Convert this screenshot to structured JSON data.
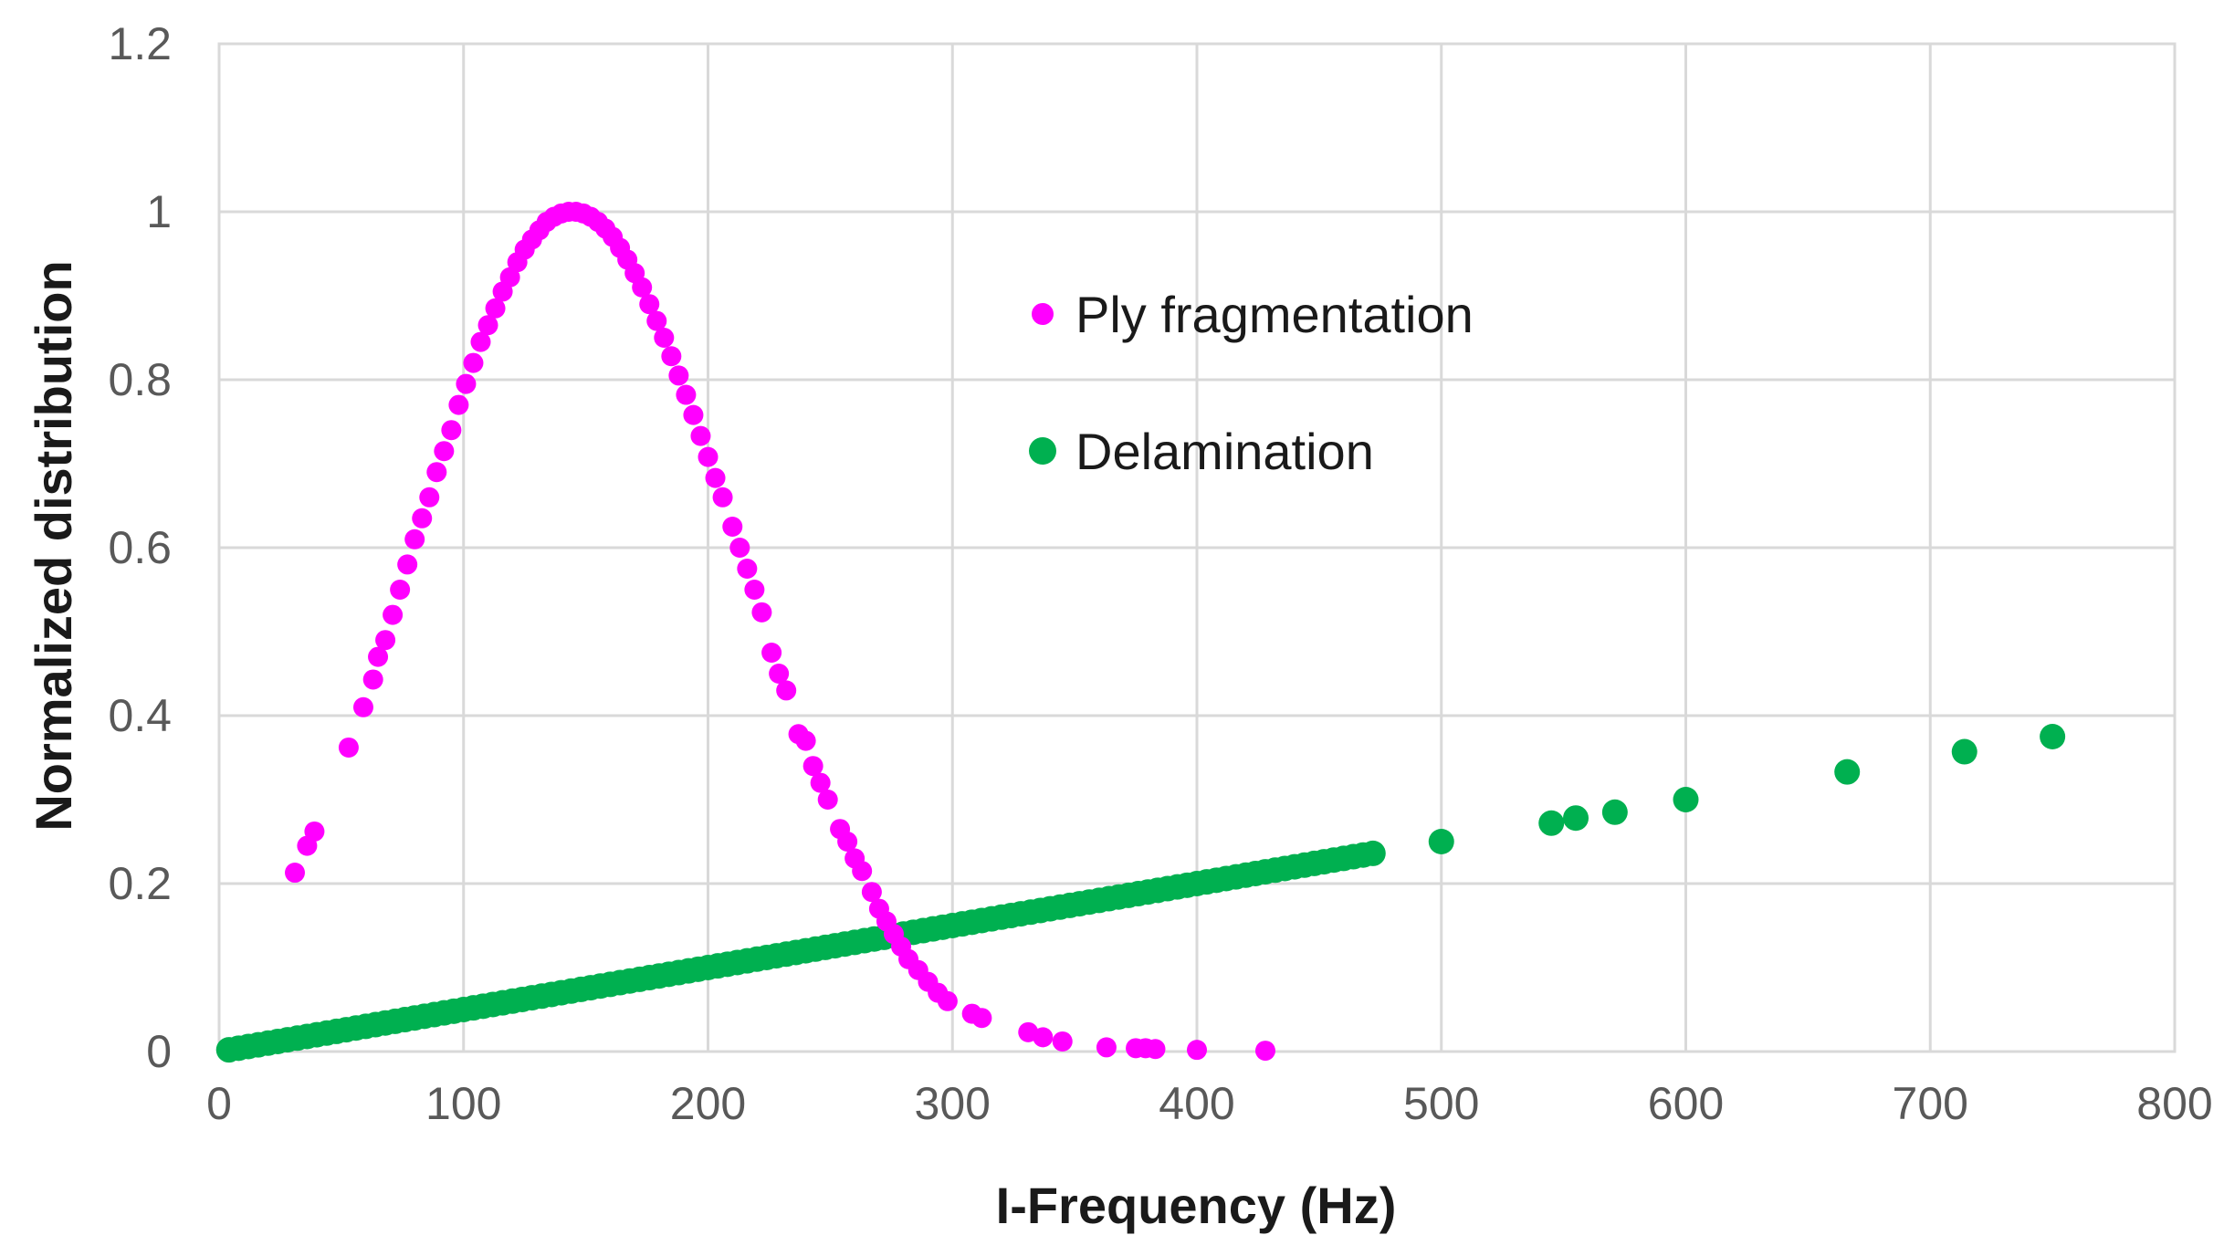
{
  "chart_data": {
    "type": "scatter",
    "title": "",
    "xlabel": "I-Frequency (Hz)",
    "ylabel": "Normalized distribution",
    "xlim": [
      0,
      800
    ],
    "ylim": [
      0,
      1.2
    ],
    "x_ticks": [
      0,
      100,
      200,
      300,
      400,
      500,
      600,
      700,
      800
    ],
    "y_ticks": [
      0,
      0.2,
      0.4,
      0.6,
      0.8,
      1,
      1.2
    ],
    "x_tick_labels": [
      "0",
      "100",
      "200",
      "300",
      "400",
      "500",
      "600",
      "700",
      "800"
    ],
    "y_tick_labels": [
      "0",
      "0.2",
      "0.4",
      "0.6",
      "0.8",
      "1",
      "1.2"
    ],
    "grid": true,
    "legend_position": "upper-center",
    "series": [
      {
        "name": "Ply fragmentation",
        "color": "#ff00ff",
        "marker_size": "small",
        "points": [
          [
            31,
            0.213
          ],
          [
            36,
            0.245
          ],
          [
            39,
            0.262
          ],
          [
            53,
            0.362
          ],
          [
            59,
            0.41
          ],
          [
            63,
            0.443
          ],
          [
            65,
            0.47
          ],
          [
            68,
            0.49
          ],
          [
            71,
            0.52
          ],
          [
            74,
            0.55
          ],
          [
            77,
            0.58
          ],
          [
            80,
            0.61
          ],
          [
            83,
            0.635
          ],
          [
            86,
            0.66
          ],
          [
            89,
            0.69
          ],
          [
            92,
            0.715
          ],
          [
            95,
            0.74
          ],
          [
            98,
            0.77
          ],
          [
            101,
            0.795
          ],
          [
            104,
            0.82
          ],
          [
            107,
            0.845
          ],
          [
            110,
            0.865
          ],
          [
            113,
            0.885
          ],
          [
            116,
            0.905
          ],
          [
            119,
            0.922
          ],
          [
            122,
            0.94
          ],
          [
            125,
            0.955
          ],
          [
            128,
            0.967
          ],
          [
            131,
            0.978
          ],
          [
            134,
            0.988
          ],
          [
            137,
            0.994
          ],
          [
            140,
            0.998
          ],
          [
            143,
            1.0
          ],
          [
            146,
            1.0
          ],
          [
            149,
            0.998
          ],
          [
            152,
            0.994
          ],
          [
            155,
            0.988
          ],
          [
            158,
            0.98
          ],
          [
            161,
            0.97
          ],
          [
            164,
            0.957
          ],
          [
            167,
            0.943
          ],
          [
            170,
            0.927
          ],
          [
            173,
            0.91
          ],
          [
            176,
            0.89
          ],
          [
            179,
            0.87
          ],
          [
            182,
            0.85
          ],
          [
            185,
            0.828
          ],
          [
            188,
            0.805
          ],
          [
            191,
            0.782
          ],
          [
            194,
            0.758
          ],
          [
            197,
            0.733
          ],
          [
            200,
            0.708
          ],
          [
            203,
            0.683
          ],
          [
            206,
            0.66
          ],
          [
            210,
            0.625
          ],
          [
            213,
            0.6
          ],
          [
            216,
            0.575
          ],
          [
            219,
            0.55
          ],
          [
            222,
            0.523
          ],
          [
            226,
            0.475
          ],
          [
            229,
            0.45
          ],
          [
            232,
            0.43
          ],
          [
            237,
            0.378
          ],
          [
            240,
            0.37
          ],
          [
            243,
            0.34
          ],
          [
            246,
            0.32
          ],
          [
            249,
            0.3
          ],
          [
            254,
            0.265
          ],
          [
            257,
            0.25
          ],
          [
            260,
            0.23
          ],
          [
            263,
            0.215
          ],
          [
            267,
            0.19
          ],
          [
            270,
            0.17
          ],
          [
            273,
            0.155
          ],
          [
            276,
            0.14
          ],
          [
            279,
            0.125
          ],
          [
            282,
            0.11
          ],
          [
            286,
            0.097
          ],
          [
            290,
            0.083
          ],
          [
            294,
            0.07
          ],
          [
            298,
            0.06
          ],
          [
            308,
            0.045
          ],
          [
            312,
            0.04
          ],
          [
            331,
            0.023
          ],
          [
            337,
            0.017
          ],
          [
            345,
            0.012
          ],
          [
            363,
            0.005
          ],
          [
            375,
            0.004
          ],
          [
            379,
            0.004
          ],
          [
            383,
            0.003
          ],
          [
            400,
            0.002
          ],
          [
            428,
            0.001
          ]
        ]
      },
      {
        "name": "Delamination",
        "color": "#00b050",
        "marker_size": "large",
        "line_sampled": {
          "x_start": 4,
          "x_end": 473,
          "step": 4,
          "y_per_hz": 0.0005
        },
        "points": [
          [
            500,
            0.25
          ],
          [
            545,
            0.272
          ],
          [
            555,
            0.278
          ],
          [
            571,
            0.285
          ],
          [
            600,
            0.3
          ],
          [
            666,
            0.333
          ],
          [
            714,
            0.357
          ],
          [
            750,
            0.375
          ]
        ]
      }
    ]
  }
}
